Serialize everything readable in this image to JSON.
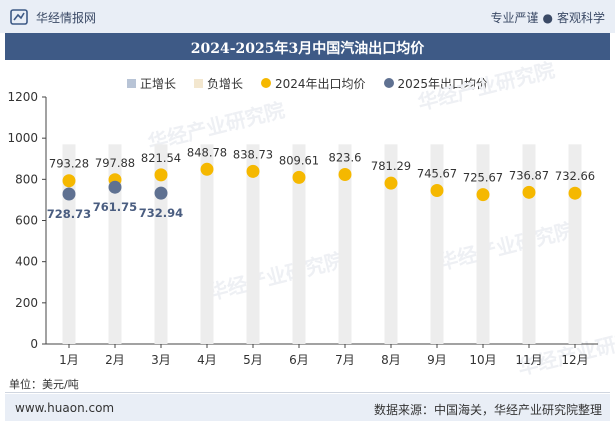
{
  "header": {
    "site_name": "华经情报网",
    "tagline_left": "专业严谨",
    "tagline_right": "客观科学"
  },
  "title": "2024-2025年3月中国汽油出口均价",
  "legend": [
    {
      "label": "正增长",
      "color": "#b8c4d6",
      "shape": "square"
    },
    {
      "label": "负增长",
      "color": "#f3e7cf",
      "shape": "square"
    },
    {
      "label": "2024年出口均价",
      "color": "#f5b800",
      "shape": "circle"
    },
    {
      "label": "2025年出口均价",
      "color": "#5f7191",
      "shape": "circle"
    }
  ],
  "unit": "单位：美元/吨",
  "footer": {
    "url": "www.huaon.com",
    "source": "数据来源：中国海关，华经产业研究院整理"
  },
  "watermark": "华经产业研究院",
  "chart_data": {
    "type": "scatter",
    "categories": [
      "1月",
      "2月",
      "3月",
      "4月",
      "5月",
      "6月",
      "7月",
      "8月",
      "9月",
      "10月",
      "11月",
      "12月"
    ],
    "series": [
      {
        "name": "2024年出口均价",
        "values": [
          793.28,
          797.88,
          821.54,
          848.78,
          838.73,
          809.61,
          823.6,
          781.29,
          745.67,
          725.67,
          736.87,
          732.66
        ]
      },
      {
        "name": "2025年出口均价",
        "values": [
          728.73,
          761.75,
          732.94
        ]
      }
    ],
    "yticks": [
      0,
      200,
      400,
      600,
      800,
      1000,
      1200
    ],
    "ylim": [
      0,
      1200
    ],
    "background_bar_value": 970,
    "legend_position": "top-center",
    "grid": false
  }
}
